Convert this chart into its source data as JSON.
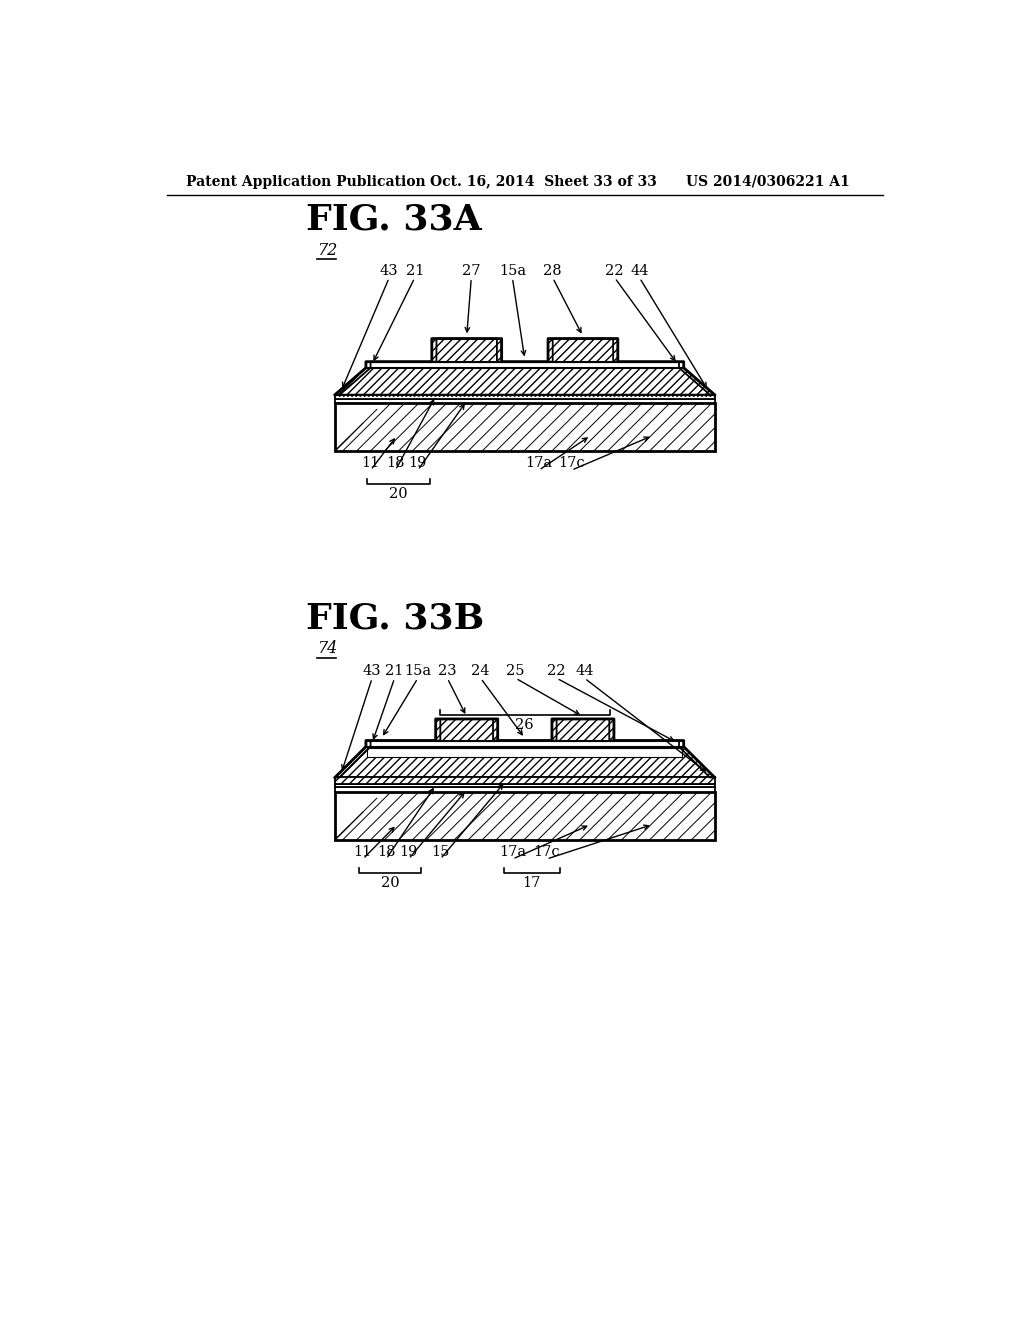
{
  "title_header_left": "Patent Application Publication",
  "title_header_mid": "Oct. 16, 2014  Sheet 33 of 33",
  "title_header_right": "US 2014/0306221 A1",
  "fig_a_label": "FIG. 33A",
  "fig_a_num": "72",
  "fig_b_label": "FIG. 33B",
  "fig_b_num": "74",
  "bg_color": "#ffffff",
  "line_color": "#000000",
  "label_fontsize": 10.5,
  "header_fontsize": 10,
  "fig_label_fontsize": 26
}
